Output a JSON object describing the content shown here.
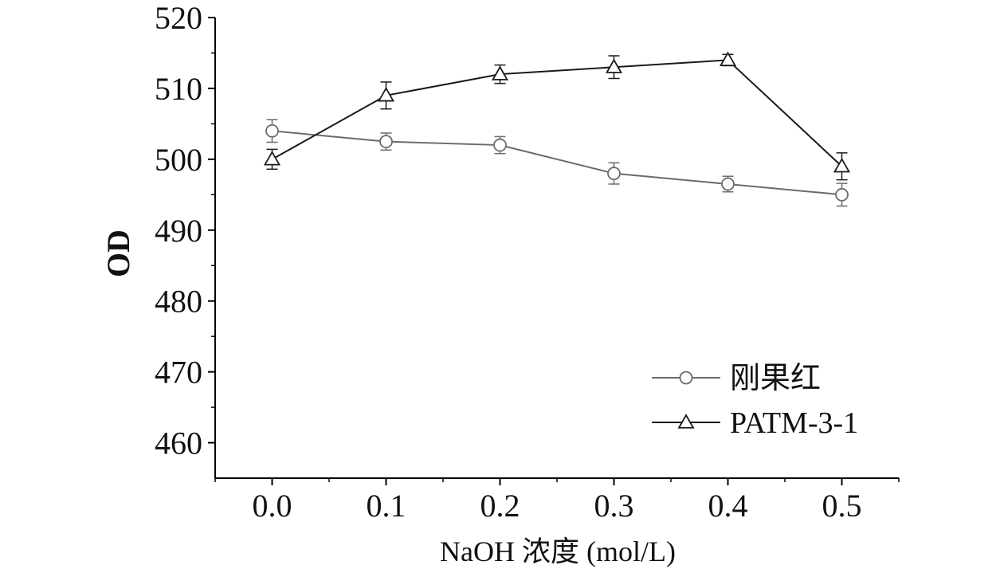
{
  "chart_data": {
    "type": "line",
    "title": "",
    "xlabel": "NaOH 浓度 (mol/L)",
    "ylabel": "OD",
    "xlim": [
      -0.05,
      0.55
    ],
    "ylim": [
      455,
      520
    ],
    "xticks": [
      0.0,
      0.1,
      0.2,
      0.3,
      0.4,
      0.5
    ],
    "xtick_labels": [
      "0.0",
      "0.1",
      "0.2",
      "0.3",
      "0.4",
      "0.5"
    ],
    "yticks": [
      460,
      470,
      480,
      490,
      500,
      510,
      520
    ],
    "ytick_labels": [
      "460",
      "470",
      "480",
      "490",
      "500",
      "510",
      "520"
    ],
    "grid": false,
    "legend_position": "bottom-right",
    "x": [
      0.0,
      0.1,
      0.2,
      0.3,
      0.4,
      0.5
    ],
    "series": [
      {
        "name": "刚果红",
        "marker": "circle",
        "color": "#6b6b6b",
        "values": [
          504.0,
          502.5,
          502.0,
          498.0,
          496.5,
          495.0
        ],
        "errors": [
          1.6,
          1.2,
          1.2,
          1.5,
          1.1,
          1.6
        ]
      },
      {
        "name": "PATM-3-1",
        "marker": "triangle",
        "color": "#1a1a1a",
        "values": [
          500.0,
          509.0,
          512.0,
          513.0,
          514.0,
          499.0
        ],
        "errors": [
          1.4,
          1.9,
          1.3,
          1.6,
          0.8,
          1.9
        ]
      }
    ]
  }
}
